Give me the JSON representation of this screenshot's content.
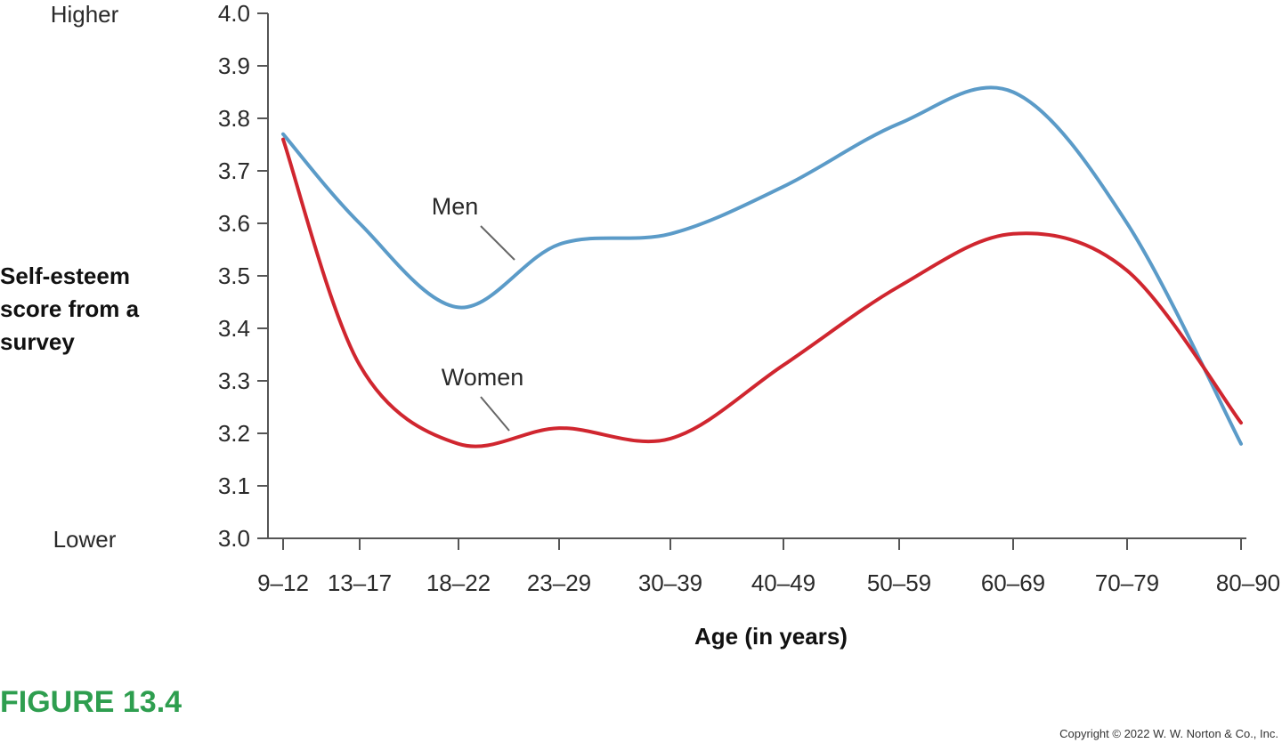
{
  "chart_data": {
    "type": "line",
    "title": "",
    "xlabel": "Age (in years)",
    "ylabel": [
      "Self-esteem",
      "score from a",
      "survey"
    ],
    "categories": [
      "9–12",
      "13–17",
      "18–22",
      "23–29",
      "30–39",
      "40–49",
      "50–59",
      "60–69",
      "70–79",
      "80–90"
    ],
    "ylim": [
      3.0,
      4.0
    ],
    "yticks": [
      "3.0",
      "3.1",
      "3.2",
      "3.3",
      "3.4",
      "3.5",
      "3.6",
      "3.7",
      "3.8",
      "3.9",
      "4.0"
    ],
    "y_high_label": "Higher",
    "y_low_label": "Lower",
    "grid": false,
    "series": [
      {
        "name": "Men",
        "color": "#5b9bc8",
        "values": [
          3.77,
          3.6,
          3.44,
          3.56,
          3.58,
          3.67,
          3.79,
          3.85,
          3.6,
          3.18
        ]
      },
      {
        "name": "Women",
        "color": "#d0262f",
        "values": [
          3.76,
          3.33,
          3.18,
          3.21,
          3.19,
          3.33,
          3.48,
          3.58,
          3.51,
          3.22
        ]
      }
    ]
  },
  "figure_label": "FIGURE 13.4",
  "figure_label_color": "#2e9e4f",
  "copyright": "Copyright © 2022 W. W. Norton & Co., Inc."
}
